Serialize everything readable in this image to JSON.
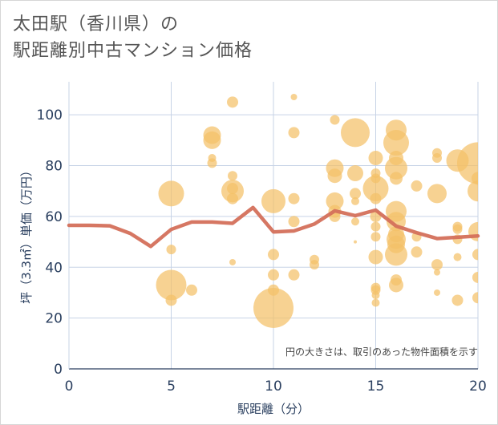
{
  "title": {
    "line1": "太田駅（香川県）の",
    "line2": "駅距離別中古マンション価格"
  },
  "colors": {
    "bubble": "#f4c168",
    "line": "#d4705b",
    "grid": "#c7d3e6",
    "axis_text": "#2a3f5f"
  },
  "chart_data": {
    "type": "scatter",
    "title": "太田駅（香川県）の駅距離別中古マンション価格",
    "xlabel": "駅距離（分）",
    "ylabel": "坪（3.3㎡）単価（万円）",
    "xlim": [
      0,
      20
    ],
    "ylim": [
      0,
      113
    ],
    "xticks": [
      0,
      5,
      10,
      15,
      20
    ],
    "yticks": [
      0,
      20,
      40,
      60,
      80,
      100
    ],
    "grid": true,
    "note": "円の大きさは、取引のあった物件面積を示す",
    "series": [
      {
        "type": "bubble",
        "points": [
          {
            "x": 5,
            "y": 69,
            "r": 16
          },
          {
            "x": 5,
            "y": 47,
            "r": 6
          },
          {
            "x": 5,
            "y": 33,
            "r": 19
          },
          {
            "x": 5,
            "y": 27,
            "r": 7
          },
          {
            "x": 6,
            "y": 31,
            "r": 7
          },
          {
            "x": 7,
            "y": 92,
            "r": 11
          },
          {
            "x": 7,
            "y": 90,
            "r": 11
          },
          {
            "x": 7,
            "y": 83,
            "r": 5
          },
          {
            "x": 7,
            "y": 81,
            "r": 6
          },
          {
            "x": 8,
            "y": 105,
            "r": 7
          },
          {
            "x": 8,
            "y": 76,
            "r": 6
          },
          {
            "x": 8,
            "y": 71,
            "r": 7
          },
          {
            "x": 8,
            "y": 70,
            "r": 14
          },
          {
            "x": 8,
            "y": 67,
            "r": 7
          },
          {
            "x": 8,
            "y": 42,
            "r": 4
          },
          {
            "x": 10,
            "y": 66,
            "r": 15
          },
          {
            "x": 10,
            "y": 45,
            "r": 7
          },
          {
            "x": 10,
            "y": 37,
            "r": 7
          },
          {
            "x": 10,
            "y": 31,
            "r": 7
          },
          {
            "x": 10,
            "y": 24,
            "r": 25
          },
          {
            "x": 11,
            "y": 107,
            "r": 4
          },
          {
            "x": 11,
            "y": 93,
            "r": 7
          },
          {
            "x": 11,
            "y": 67,
            "r": 7
          },
          {
            "x": 11,
            "y": 58,
            "r": 7
          },
          {
            "x": 11,
            "y": 37,
            "r": 7
          },
          {
            "x": 12,
            "y": 43,
            "r": 6
          },
          {
            "x": 12,
            "y": 41,
            "r": 6
          },
          {
            "x": 13,
            "y": 98,
            "r": 6
          },
          {
            "x": 13,
            "y": 79,
            "r": 11
          },
          {
            "x": 13,
            "y": 76,
            "r": 9
          },
          {
            "x": 13,
            "y": 66,
            "r": 11
          },
          {
            "x": 13,
            "y": 62,
            "r": 8
          },
          {
            "x": 13,
            "y": 60,
            "r": 7
          },
          {
            "x": 14,
            "y": 93,
            "r": 18
          },
          {
            "x": 14,
            "y": 77,
            "r": 10
          },
          {
            "x": 14,
            "y": 69,
            "r": 7
          },
          {
            "x": 14,
            "y": 66,
            "r": 5
          },
          {
            "x": 14,
            "y": 58,
            "r": 5
          },
          {
            "x": 14,
            "y": 50,
            "r": 2
          },
          {
            "x": 15,
            "y": 83,
            "r": 9
          },
          {
            "x": 15,
            "y": 77,
            "r": 6
          },
          {
            "x": 15,
            "y": 75,
            "r": 6
          },
          {
            "x": 15,
            "y": 71,
            "r": 16
          },
          {
            "x": 15,
            "y": 67,
            "r": 7
          },
          {
            "x": 15,
            "y": 60,
            "r": 7
          },
          {
            "x": 15,
            "y": 56,
            "r": 6
          },
          {
            "x": 15,
            "y": 52,
            "r": 6
          },
          {
            "x": 15,
            "y": 44,
            "r": 9
          },
          {
            "x": 15,
            "y": 32,
            "r": 6
          },
          {
            "x": 15,
            "y": 31,
            "r": 6
          },
          {
            "x": 15,
            "y": 29,
            "r": 5
          },
          {
            "x": 15,
            "y": 26,
            "r": 5
          },
          {
            "x": 16,
            "y": 94,
            "r": 13
          },
          {
            "x": 16,
            "y": 89,
            "r": 16
          },
          {
            "x": 16,
            "y": 83,
            "r": 9
          },
          {
            "x": 16,
            "y": 79,
            "r": 14
          },
          {
            "x": 16,
            "y": 75,
            "r": 8
          },
          {
            "x": 16,
            "y": 62,
            "r": 13
          },
          {
            "x": 16,
            "y": 58,
            "r": 12
          },
          {
            "x": 16,
            "y": 53,
            "r": 10
          },
          {
            "x": 16,
            "y": 51,
            "r": 12
          },
          {
            "x": 16,
            "y": 49,
            "r": 11
          },
          {
            "x": 16,
            "y": 45,
            "r": 14
          },
          {
            "x": 16,
            "y": 35,
            "r": 7
          },
          {
            "x": 16,
            "y": 33,
            "r": 9
          },
          {
            "x": 17,
            "y": 72,
            "r": 7
          },
          {
            "x": 17,
            "y": 52,
            "r": 6
          },
          {
            "x": 17,
            "y": 46,
            "r": 7
          },
          {
            "x": 18,
            "y": 85,
            "r": 6
          },
          {
            "x": 18,
            "y": 83,
            "r": 6
          },
          {
            "x": 18,
            "y": 69,
            "r": 12
          },
          {
            "x": 18,
            "y": 41,
            "r": 7
          },
          {
            "x": 18,
            "y": 38,
            "r": 4
          },
          {
            "x": 18,
            "y": 30,
            "r": 4
          },
          {
            "x": 19,
            "y": 82,
            "r": 14
          },
          {
            "x": 19,
            "y": 56,
            "r": 6
          },
          {
            "x": 19,
            "y": 55,
            "r": 6
          },
          {
            "x": 19,
            "y": 51,
            "r": 6
          },
          {
            "x": 19,
            "y": 44,
            "r": 5
          },
          {
            "x": 19,
            "y": 27,
            "r": 7
          },
          {
            "x": 20,
            "y": 81,
            "r": 26
          },
          {
            "x": 20,
            "y": 75,
            "r": 8
          },
          {
            "x": 20,
            "y": 70,
            "r": 13
          },
          {
            "x": 20,
            "y": 54,
            "r": 12
          },
          {
            "x": 20,
            "y": 45,
            "r": 7
          },
          {
            "x": 20,
            "y": 36,
            "r": 7
          },
          {
            "x": 20,
            "y": 28,
            "r": 7
          }
        ]
      },
      {
        "type": "line",
        "x": [
          0,
          1,
          2,
          3,
          4,
          5,
          6,
          7,
          8,
          9,
          10,
          11,
          12,
          13,
          14,
          15,
          16,
          17,
          18,
          19,
          20
        ],
        "y": [
          56.5,
          56.5,
          56.3,
          53.3,
          48.2,
          54.9,
          57.8,
          57.8,
          57.3,
          63.5,
          53.9,
          54.3,
          57.0,
          62.2,
          60.3,
          62.5,
          56.2,
          53.6,
          51.3,
          51.8,
          52.3
        ]
      }
    ]
  }
}
